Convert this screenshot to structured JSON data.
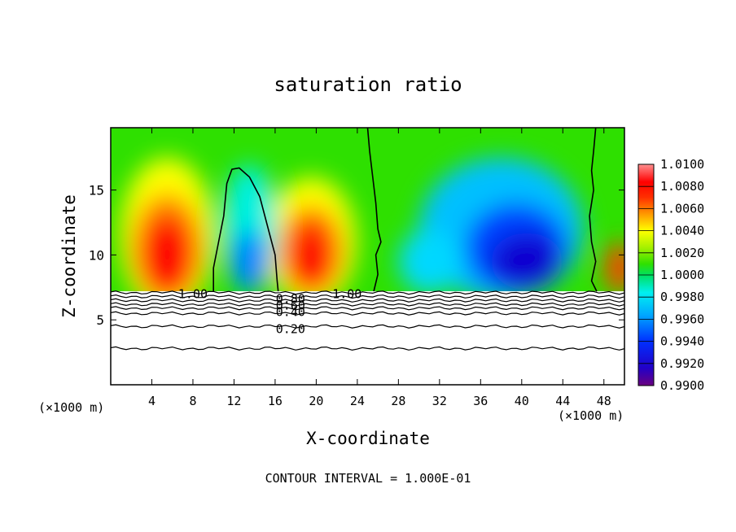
{
  "chart_data": {
    "type": "heatmap",
    "title": "saturation ratio",
    "xlabel": "X-coordinate",
    "ylabel": "Z-coordinate",
    "x_unit_left": "(×1000 m)",
    "x_unit_right": "(×1000 m)",
    "footer": "CONTOUR INTERVAL = 1.000E-01",
    "xlim": [
      0,
      50
    ],
    "ylim": [
      0,
      19.8
    ],
    "x_ticks": [
      4,
      8,
      12,
      16,
      20,
      24,
      28,
      32,
      36,
      40,
      44,
      48
    ],
    "y_ticks": [
      5,
      10,
      15
    ],
    "grid": false,
    "colorbar": {
      "position": "right",
      "min": 0.99,
      "max": 1.01,
      "labels": [
        "1.0100",
        "1.0080",
        "1.0060",
        "1.0040",
        "1.0020",
        "1.0000",
        "0.9980",
        "0.9960",
        "0.9940",
        "0.9920",
        "0.9900"
      ]
    },
    "cloud_base_height": 7.2,
    "colored_field": {
      "description_free": true,
      "features": [
        {
          "x": 5.5,
          "z": 11,
          "value": 1.0085
        },
        {
          "x": 13.5,
          "z": 10,
          "value": 0.9955
        },
        {
          "x": 19.5,
          "z": 11,
          "value": 1.0075
        },
        {
          "x": 40,
          "z": 10,
          "value": 0.9915
        }
      ],
      "background_value": 1.0
    },
    "contour_labels": [
      {
        "text": "1.00",
        "x": 8,
        "z": 7.0
      },
      {
        "text": "1.00",
        "x": 23,
        "z": 7.0
      },
      {
        "text": "0.80",
        "x": 17.5,
        "z": 6.6
      },
      {
        "text": "0.60",
        "x": 17.5,
        "z": 6.1
      },
      {
        "text": "0.40",
        "x": 17.5,
        "z": 5.6
      },
      {
        "text": "0.20",
        "x": 17.5,
        "z": 4.3
      }
    ],
    "contour_levels_z": [
      7.1,
      6.8,
      6.5,
      6.2,
      5.9,
      5.5,
      4.5,
      2.8
    ],
    "unity_contours": [
      {
        "points": [
          [
            10.0,
            7.2
          ],
          [
            10.0,
            9.0
          ],
          [
            10.5,
            11.0
          ],
          [
            11.0,
            13.0
          ],
          [
            11.3,
            15.5
          ],
          [
            11.8,
            16.6
          ],
          [
            12.5,
            16.7
          ],
          [
            13.5,
            16.0
          ],
          [
            14.5,
            14.5
          ],
          [
            15.0,
            13.0
          ],
          [
            15.5,
            11.5
          ],
          [
            16.0,
            10.0
          ],
          [
            16.2,
            8.0
          ],
          [
            16.3,
            7.2
          ]
        ]
      },
      {
        "points": [
          [
            25.0,
            19.8
          ],
          [
            25.2,
            18.0
          ],
          [
            25.5,
            16.0
          ],
          [
            25.8,
            14.0
          ],
          [
            26.0,
            12.0
          ],
          [
            26.3,
            11.0
          ],
          [
            25.8,
            10.0
          ],
          [
            26.0,
            8.5
          ],
          [
            25.6,
            7.2
          ]
        ]
      },
      {
        "points": [
          [
            47.2,
            19.8
          ],
          [
            47.0,
            18.0
          ],
          [
            46.8,
            16.5
          ],
          [
            47.0,
            15.0
          ],
          [
            46.6,
            13.0
          ],
          [
            46.8,
            11.0
          ],
          [
            47.2,
            9.5
          ],
          [
            46.8,
            8.0
          ],
          [
            47.3,
            7.2
          ]
        ]
      }
    ]
  }
}
